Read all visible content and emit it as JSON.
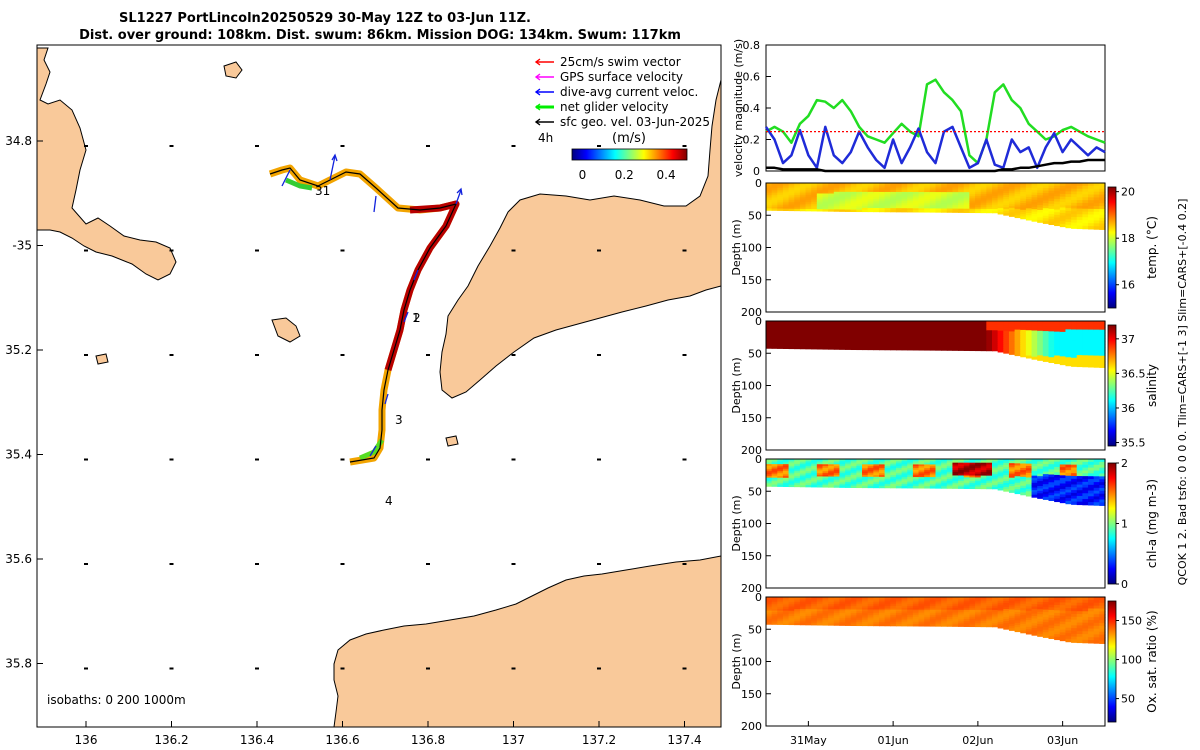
{
  "title": {
    "line1": "SL1227 PortLincoln20250529 30-May 12Z to 03-Jun 11Z.",
    "line2": "Dist. over ground: 108km. Dist. swum: 86km. Mission DOG: 134km. Swum: 117km"
  },
  "side_note": "QCOK 1  2. Bad tsfo: 0  0  0  0. Tlim=CARS+[-1 3] Slim=CARS+[-0.4 0.2]",
  "map": {
    "legend": [
      {
        "label": "25cm/s swim vector",
        "color": "#ff0000"
      },
      {
        "label": "GPS surface velocity",
        "color": "#ff00ff"
      },
      {
        "label": "dive-avg current veloc.",
        "color": "#0000ff"
      },
      {
        "label": "net glider velocity",
        "color": "#00ee00"
      },
      {
        "label": "sfc geo. vel. 03-Jun-2025",
        "color": "#000000"
      }
    ],
    "legend_tag": "4h",
    "colorbar_label": "(m/s)",
    "colorbar_ticks": [
      "0",
      "0.2",
      "0.4"
    ],
    "colorbar_range": [
      -0.05,
      0.5
    ],
    "lon_ticks": [
      "136",
      "136.2",
      "136.4",
      "136.6",
      "136.8",
      "137",
      "137.2",
      "137.4"
    ],
    "lat_ticks": [
      "34.8",
      "-35",
      "35.2",
      "35.4",
      "35.6",
      "35.8"
    ],
    "isobaths_label": "isobaths: 0   200  1000m",
    "day_markers": [
      "31",
      "1",
      "2",
      "3",
      "4"
    ],
    "land_color": "#f9c99a"
  },
  "chart_data": [
    {
      "type": "line",
      "title": "",
      "ylabel": "velocity magnitude (m/s)",
      "ylim": [
        0,
        0.8
      ],
      "yticks": [
        "0",
        "0.2",
        "0.4",
        "0.6",
        "0.8"
      ],
      "x": [
        0,
        0.1,
        0.2,
        0.3,
        0.4,
        0.5,
        0.6,
        0.7,
        0.8,
        0.9,
        1.0,
        1.1,
        1.2,
        1.3,
        1.4,
        1.5,
        1.6,
        1.7,
        1.8,
        1.9,
        2.0,
        2.1,
        2.2,
        2.3,
        2.4,
        2.5,
        2.6,
        2.7,
        2.8,
        2.9,
        3.0,
        3.1,
        3.2,
        3.3,
        3.4,
        3.5,
        3.6,
        3.7,
        3.8,
        3.9,
        4.0
      ],
      "series": [
        {
          "name": "net glider velocity",
          "color": "#22dd22",
          "values": [
            0.25,
            0.28,
            0.25,
            0.18,
            0.3,
            0.35,
            0.45,
            0.44,
            0.4,
            0.45,
            0.38,
            0.28,
            0.22,
            0.2,
            0.18,
            0.24,
            0.3,
            0.25,
            0.22,
            0.55,
            0.58,
            0.5,
            0.45,
            0.38,
            0.1,
            0.05,
            0.2,
            0.5,
            0.55,
            0.45,
            0.4,
            0.3,
            0.25,
            0.2,
            0.22,
            0.26,
            0.28,
            0.25,
            0.22,
            0.2,
            0.18
          ]
        },
        {
          "name": "dive-avg current veloc.",
          "color": "#1f2bd8",
          "values": [
            0.28,
            0.2,
            0.05,
            0.1,
            0.26,
            0.1,
            0.02,
            0.28,
            0.1,
            0.05,
            0.12,
            0.25,
            0.15,
            0.07,
            0.02,
            0.2,
            0.05,
            0.15,
            0.27,
            0.12,
            0.05,
            0.25,
            0.28,
            0.15,
            0.02,
            0.05,
            0.2,
            0.04,
            0.02,
            0.2,
            0.12,
            0.15,
            0.02,
            0.15,
            0.24,
            0.12,
            0.2,
            0.15,
            0.1,
            0.15,
            0.12
          ]
        },
        {
          "name": "25cm/s swim vector",
          "color": "#ff0000",
          "dashed": true,
          "values": [
            0.25,
            0.25,
            0.25,
            0.25,
            0.25,
            0.25,
            0.25,
            0.25,
            0.25,
            0.25,
            0.25,
            0.25,
            0.25,
            0.25,
            0.25,
            0.25,
            0.25,
            0.25,
            0.25,
            0.25,
            0.25,
            0.25,
            0.25,
            0.25,
            0.25,
            0.25,
            0.25,
            0.25,
            0.25,
            0.25,
            0.25,
            0.25,
            0.25,
            0.25,
            0.25,
            0.25,
            0.25,
            0.25,
            0.25,
            0.25,
            0.25
          ]
        },
        {
          "name": "sfc geo. vel.",
          "color": "#000000",
          "values": [
            0.02,
            0.02,
            0.01,
            0.01,
            0.01,
            0.01,
            0.01,
            0.0,
            0.0,
            0.0,
            0.0,
            0.0,
            0.0,
            0.0,
            0.0,
            0.0,
            0.0,
            0.0,
            0.0,
            0.0,
            0.0,
            0.0,
            0.0,
            0.0,
            0.0,
            0.0,
            0.0,
            0.0,
            0.01,
            0.01,
            0.02,
            0.02,
            0.03,
            0.04,
            0.05,
            0.05,
            0.06,
            0.06,
            0.07,
            0.07,
            0.07
          ]
        }
      ]
    },
    {
      "type": "heatmap",
      "variable": "temp. (°C)",
      "ylabel": "Depth (m)",
      "ylim": [
        200,
        0
      ],
      "yticks": [
        "0",
        "50",
        "100",
        "150",
        "200"
      ],
      "clim": [
        15,
        20.2
      ],
      "cticks": [
        "16",
        "18",
        "20"
      ],
      "base_value": 18.6,
      "mid_value": 18.0,
      "deep_value": 18.4
    },
    {
      "type": "heatmap",
      "variable": "salinity",
      "ylabel": "Depth (m)",
      "ylim": [
        200,
        0
      ],
      "yticks": [
        "0",
        "50",
        "100",
        "150",
        "200"
      ],
      "clim": [
        35.45,
        37.2
      ],
      "cticks": [
        "35.5",
        "36",
        "36.5",
        "37"
      ],
      "early_value": 37.2,
      "late_shallow": 36.9,
      "late_mid": 36.1,
      "late_deep": 36.6
    },
    {
      "type": "heatmap",
      "variable": "chl-a (mg m-3)",
      "ylabel": "Depth (m)",
      "ylim": [
        200,
        0
      ],
      "yticks": [
        "0",
        "50",
        "100",
        "150",
        "200"
      ],
      "clim": [
        0,
        2
      ],
      "cticks": [
        "0",
        "1",
        "2"
      ],
      "surface_value": 0.9,
      "peak_value": 1.9,
      "deep_late_value": 0.3
    },
    {
      "type": "heatmap",
      "variable": "Ox. sat. ratio (%)",
      "ylabel": "Depth (m)",
      "ylim": [
        200,
        0
      ],
      "yticks": [
        "0",
        "50",
        "100",
        "150",
        "200"
      ],
      "clim": [
        20,
        175
      ],
      "cticks": [
        "50",
        "100",
        "150"
      ],
      "base_value": 137,
      "upper_value": 141
    }
  ],
  "time_axis": {
    "range_days": [
      0,
      4
    ],
    "ticks": [
      {
        "label": "31May",
        "day": 0.5
      },
      {
        "label": "01Jun",
        "day": 1.5
      },
      {
        "label": "02Jun",
        "day": 2.5
      },
      {
        "label": "03Jun",
        "day": 3.5
      }
    ]
  },
  "profile_bottom_depth": {
    "x": [
      0,
      1.0,
      2.0,
      2.7,
      3.2,
      3.6,
      4.0
    ],
    "depth": [
      42,
      44,
      45,
      46,
      60,
      70,
      72
    ]
  }
}
